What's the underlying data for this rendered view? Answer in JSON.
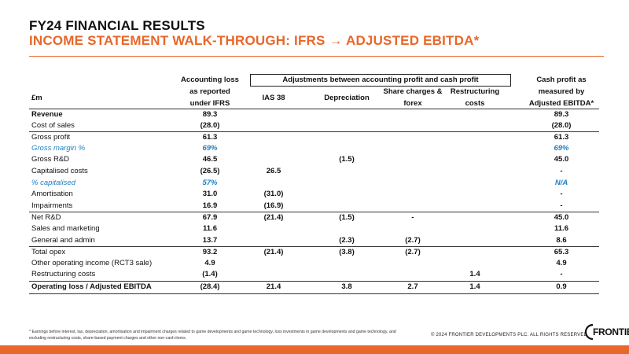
{
  "header": {
    "title_line1": "FY24 FINANCIAL RESULTS",
    "title_line2": "INCOME STATEMENT WALK-THROUGH: IFRS → ADJUSTED EBITDA*"
  },
  "table": {
    "unit_label": "£m",
    "col_accounting": [
      "Accounting loss",
      "as reported",
      "under IFRS"
    ],
    "adjustments_header": "Adjustments between accounting profit and cash profit",
    "col_ias38": "IAS 38",
    "col_depreciation": "Depreciation",
    "col_share": [
      "Share charges &",
      "forex"
    ],
    "col_restructuring": [
      "Restructuring",
      "costs"
    ],
    "col_cash": [
      "Cash profit as",
      "measured by",
      "Adjusted EBITDA*"
    ],
    "rows": [
      {
        "label": "Revenue",
        "ifrs": "89.3",
        "ias38": "",
        "dep": "",
        "share": "",
        "restr": "",
        "cash": "89.3"
      },
      {
        "label": "Cost of sales",
        "ifrs": "(28.0)",
        "ias38": "",
        "dep": "",
        "share": "",
        "restr": "",
        "cash": "(28.0)"
      },
      {
        "label": "Gross profit",
        "ifrs": "61.3",
        "ias38": "",
        "dep": "",
        "share": "",
        "restr": "",
        "cash": "61.3"
      },
      {
        "label": "Gross margin %",
        "ifrs": "69%",
        "ias38": "",
        "dep": "",
        "share": "",
        "restr": "",
        "cash": "69%"
      },
      {
        "label": "Gross R&D",
        "ifrs": "46.5",
        "ias38": "",
        "dep": "(1.5)",
        "share": "",
        "restr": "",
        "cash": "45.0"
      },
      {
        "label": "Capitalised costs",
        "ifrs": "(26.5)",
        "ias38": "26.5",
        "dep": "",
        "share": "",
        "restr": "",
        "cash": "-"
      },
      {
        "label": "% capitalised",
        "ifrs": "57%",
        "ias38": "",
        "dep": "",
        "share": "",
        "restr": "",
        "cash": "N/A"
      },
      {
        "label": "Amortisation",
        "ifrs": "31.0",
        "ias38": "(31.0)",
        "dep": "",
        "share": "",
        "restr": "",
        "cash": "-"
      },
      {
        "label": "Impairments",
        "ifrs": "16.9",
        "ias38": "(16.9)",
        "dep": "",
        "share": "",
        "restr": "",
        "cash": "-"
      },
      {
        "label": "Net R&D",
        "ifrs": "67.9",
        "ias38": "(21.4)",
        "dep": "(1.5)",
        "share": "-",
        "restr": "",
        "cash": "45.0"
      },
      {
        "label": "Sales and marketing",
        "ifrs": "11.6",
        "ias38": "",
        "dep": "",
        "share": "",
        "restr": "",
        "cash": "11.6"
      },
      {
        "label": "General and admin",
        "ifrs": "13.7",
        "ias38": "",
        "dep": "(2.3)",
        "share": "(2.7)",
        "restr": "",
        "cash": "8.6"
      },
      {
        "label": "Total opex",
        "ifrs": "93.2",
        "ias38": "(21.4)",
        "dep": "(3.8)",
        "share": "(2.7)",
        "restr": "",
        "cash": "65.3"
      },
      {
        "label": "Other operating income (RCT3 sale)",
        "ifrs": "4.9",
        "ias38": "",
        "dep": "",
        "share": "",
        "restr": "",
        "cash": "4.9"
      },
      {
        "label": "Restructuring costs",
        "ifrs": "(1.4)",
        "ias38": "",
        "dep": "",
        "share": "",
        "restr": "1.4",
        "cash": "-"
      },
      {
        "label": "Operating loss / Adjusted EBITDA",
        "ifrs": "(28.4)",
        "ias38": "21.4",
        "dep": "3.8",
        "share": "2.7",
        "restr": "1.4",
        "cash": "0.9"
      }
    ]
  },
  "footer": {
    "footnote": "* Earnings before interest, tax, depreciation, amortisation and impairment charges related to game developments and game technology, loss investments in game developments and game technology, and excluding restructuring costs, share-based payment charges and other non-cash items.",
    "copyright": "© 2024 FRONTIER DEVELOPMENTS PLC. ALL RIGHTS RESERVED",
    "logo_text": "FRONTIER"
  },
  "colors": {
    "accent": "#e8672a",
    "highlight": "#1e7fc3"
  }
}
